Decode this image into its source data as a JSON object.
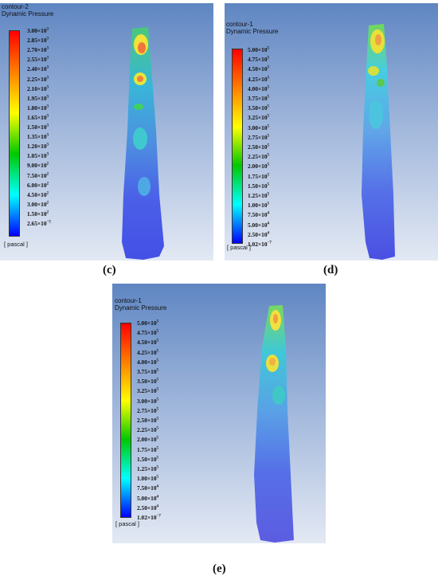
{
  "panels": [
    {
      "title": "contour-2",
      "subtitle": "Dynamic Pressure",
      "unit": "[ pascal ]",
      "ticks": [
        {
          "m": "3.00",
          "e": "3"
        },
        {
          "m": "2.85",
          "e": "3"
        },
        {
          "m": "2.70",
          "e": "3"
        },
        {
          "m": "2.55",
          "e": "3"
        },
        {
          "m": "2.40",
          "e": "3"
        },
        {
          "m": "2.25",
          "e": "3"
        },
        {
          "m": "2.10",
          "e": "3"
        },
        {
          "m": "1.95",
          "e": "3"
        },
        {
          "m": "1.80",
          "e": "3"
        },
        {
          "m": "1.65",
          "e": "3"
        },
        {
          "m": "1.50",
          "e": "3"
        },
        {
          "m": "1.35",
          "e": "3"
        },
        {
          "m": "1.20",
          "e": "3"
        },
        {
          "m": "1.05",
          "e": "3"
        },
        {
          "m": "9.00",
          "e": "2"
        },
        {
          "m": "7.50",
          "e": "2"
        },
        {
          "m": "6.00",
          "e": "2"
        },
        {
          "m": "4.50",
          "e": "2"
        },
        {
          "m": "3.00",
          "e": "2"
        },
        {
          "m": "1.50",
          "e": "2"
        },
        {
          "m": "2.65",
          "e": "−5"
        }
      ]
    },
    {
      "title": "contour-1",
      "subtitle": "Dynamic Pressure",
      "unit": "[ pascal ]",
      "ticks": [
        {
          "m": "5.00",
          "e": "5"
        },
        {
          "m": "4.75",
          "e": "5"
        },
        {
          "m": "4.50",
          "e": "5"
        },
        {
          "m": "4.25",
          "e": "5"
        },
        {
          "m": "4.00",
          "e": "5"
        },
        {
          "m": "3.75",
          "e": "5"
        },
        {
          "m": "3.50",
          "e": "5"
        },
        {
          "m": "3.25",
          "e": "5"
        },
        {
          "m": "3.00",
          "e": "5"
        },
        {
          "m": "2.75",
          "e": "5"
        },
        {
          "m": "2.50",
          "e": "5"
        },
        {
          "m": "2.25",
          "e": "5"
        },
        {
          "m": "2.00",
          "e": "5"
        },
        {
          "m": "1.75",
          "e": "5"
        },
        {
          "m": "1.50",
          "e": "5"
        },
        {
          "m": "1.25",
          "e": "5"
        },
        {
          "m": "1.00",
          "e": "5"
        },
        {
          "m": "7.50",
          "e": "4"
        },
        {
          "m": "5.00",
          "e": "4"
        },
        {
          "m": "2.50",
          "e": "4"
        },
        {
          "m": "1.02",
          "e": "−7"
        }
      ]
    },
    {
      "title": "contour-1",
      "subtitle": "Dynamic Pressure",
      "unit": "[ pascal ]",
      "ticks": [
        {
          "m": "5.00",
          "e": "5"
        },
        {
          "m": "4.75",
          "e": "5"
        },
        {
          "m": "4.50",
          "e": "5"
        },
        {
          "m": "4.25",
          "e": "5"
        },
        {
          "m": "4.00",
          "e": "5"
        },
        {
          "m": "3.75",
          "e": "5"
        },
        {
          "m": "3.50",
          "e": "5"
        },
        {
          "m": "3.25",
          "e": "5"
        },
        {
          "m": "3.00",
          "e": "5"
        },
        {
          "m": "2.75",
          "e": "5"
        },
        {
          "m": "2.50",
          "e": "5"
        },
        {
          "m": "2.25",
          "e": "5"
        },
        {
          "m": "2.00",
          "e": "5"
        },
        {
          "m": "1.75",
          "e": "5"
        },
        {
          "m": "1.50",
          "e": "5"
        },
        {
          "m": "1.25",
          "e": "5"
        },
        {
          "m": "1.00",
          "e": "5"
        },
        {
          "m": "7.50",
          "e": "4"
        },
        {
          "m": "5.00",
          "e": "4"
        },
        {
          "m": "2.50",
          "e": "4"
        },
        {
          "m": "1.02",
          "e": "−7"
        }
      ]
    }
  ],
  "captions": [
    "(c)",
    "(d)",
    "(e)"
  ],
  "colors": {
    "scale": [
      "#ff0000",
      "#ff7f00",
      "#ffff00",
      "#00c800",
      "#00ffff",
      "#0000ff"
    ],
    "background_top": "#5f86c2",
    "background_bottom": "#e3e9f4"
  }
}
